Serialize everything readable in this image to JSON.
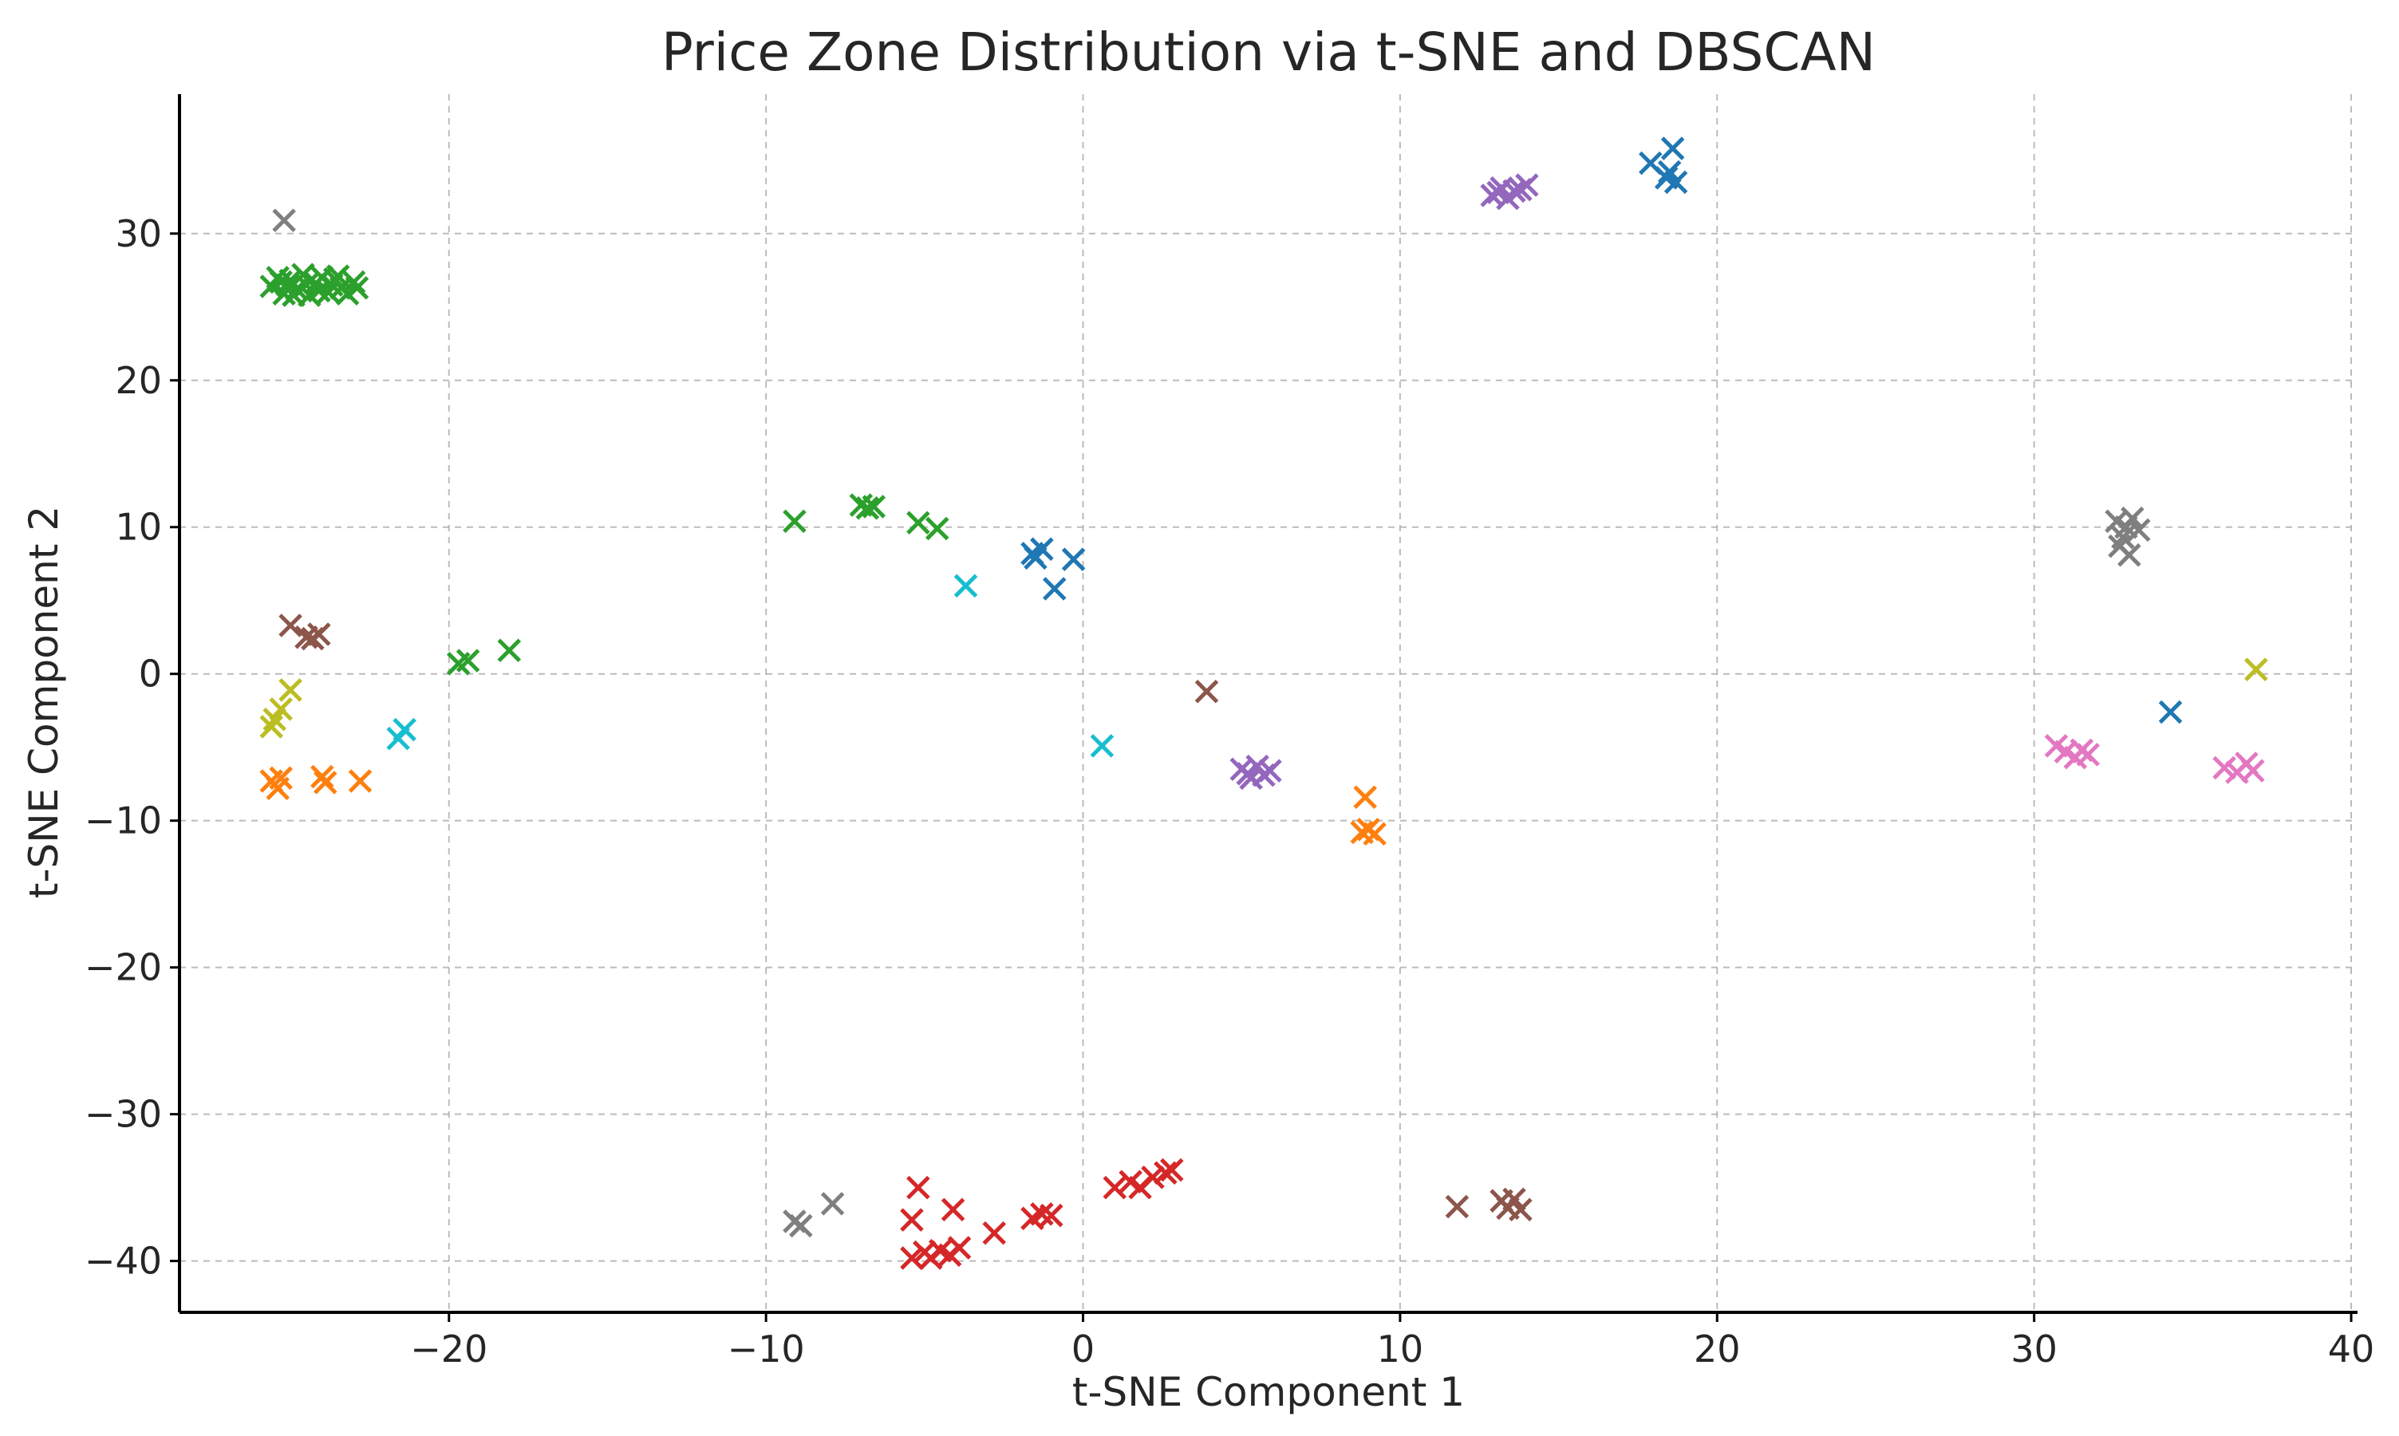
{
  "chart_data": {
    "type": "scatter",
    "title": "Price Zone Distribution via t-SNE and DBSCAN",
    "xlabel": "t-SNE Component 1",
    "ylabel": "t-SNE Component 2",
    "xlim": [
      -28.5,
      40.2
    ],
    "ylim": [
      -43.5,
      39.5
    ],
    "xticks": [
      -20,
      -10,
      0,
      10,
      20,
      30,
      40
    ],
    "yticks": [
      -40,
      -30,
      -20,
      -10,
      0,
      10,
      20,
      30
    ],
    "xtick_labels": [
      "−20",
      "−10",
      "0",
      "10",
      "20",
      "30",
      "40"
    ],
    "ytick_labels": [
      "−40",
      "−30",
      "−20",
      "−10",
      "0",
      "10",
      "20",
      "30"
    ],
    "grid": true,
    "marker": "x",
    "series": [
      {
        "color": "#2ca02c",
        "points": [
          [
            -25.6,
            26.4
          ],
          [
            -25.4,
            27.0
          ],
          [
            -25.2,
            25.9
          ],
          [
            -25.0,
            26.8
          ],
          [
            -24.8,
            26.2
          ],
          [
            -24.6,
            27.2
          ],
          [
            -24.4,
            25.8
          ],
          [
            -24.2,
            26.6
          ],
          [
            -24.0,
            27.0
          ],
          [
            -23.8,
            26.0
          ],
          [
            -23.6,
            26.9
          ],
          [
            -23.4,
            26.3
          ],
          [
            -23.2,
            25.9
          ],
          [
            -23.0,
            26.7
          ],
          [
            -24.5,
            26.5
          ],
          [
            -24.1,
            26.1
          ],
          [
            -23.7,
            26.5
          ],
          [
            -25.1,
            26.5
          ],
          [
            -24.9,
            25.8
          ],
          [
            -23.5,
            27.1
          ],
          [
            -22.9,
            26.3
          ],
          [
            -25.3,
            26.7
          ],
          [
            -9.1,
            10.4
          ],
          [
            -7.0,
            11.5
          ],
          [
            -6.8,
            11.3
          ],
          [
            -6.6,
            11.4
          ],
          [
            -5.2,
            10.3
          ],
          [
            -4.6,
            9.9
          ],
          [
            -19.7,
            0.7
          ],
          [
            -19.4,
            0.9
          ],
          [
            -18.1,
            1.6
          ]
        ]
      },
      {
        "color": "#1f77b4",
        "points": [
          [
            17.9,
            34.8
          ],
          [
            18.6,
            35.8
          ],
          [
            18.4,
            33.8
          ],
          [
            18.7,
            33.5
          ],
          [
            18.5,
            34.2
          ],
          [
            -1.6,
            8.2
          ],
          [
            -1.3,
            8.5
          ],
          [
            -1.5,
            7.9
          ],
          [
            -0.3,
            7.8
          ],
          [
            -0.9,
            5.8
          ],
          [
            34.3,
            -2.6
          ]
        ]
      },
      {
        "color": "#9467bd",
        "points": [
          [
            12.9,
            32.6
          ],
          [
            13.2,
            33.1
          ],
          [
            13.4,
            32.4
          ],
          [
            13.6,
            32.9
          ],
          [
            13.8,
            33.0
          ],
          [
            14.0,
            33.3
          ],
          [
            13.1,
            32.8
          ],
          [
            5.0,
            -6.5
          ],
          [
            5.3,
            -7.1
          ],
          [
            5.5,
            -6.3
          ],
          [
            5.7,
            -6.9
          ],
          [
            5.9,
            -6.6
          ],
          [
            5.2,
            -6.8
          ]
        ]
      },
      {
        "color": "#7f7f7f",
        "points": [
          [
            -25.2,
            30.9
          ],
          [
            32.6,
            10.4
          ],
          [
            32.9,
            10.0
          ],
          [
            33.1,
            10.6
          ],
          [
            33.3,
            9.8
          ],
          [
            32.8,
            9.3
          ],
          [
            32.7,
            8.7
          ],
          [
            33.0,
            8.1
          ],
          [
            -9.1,
            -37.3
          ],
          [
            -8.9,
            -37.6
          ],
          [
            -7.9,
            -36.1
          ]
        ]
      },
      {
        "color": "#8c564b",
        "points": [
          [
            -25.0,
            3.3
          ],
          [
            -24.5,
            2.5
          ],
          [
            -24.1,
            2.7
          ],
          [
            -24.3,
            2.4
          ],
          [
            3.9,
            -1.2
          ],
          [
            11.8,
            -36.3
          ],
          [
            13.2,
            -35.9
          ],
          [
            13.4,
            -36.4
          ],
          [
            13.6,
            -35.8
          ],
          [
            13.8,
            -36.5
          ]
        ]
      },
      {
        "color": "#bcbd22",
        "points": [
          [
            -25.6,
            -3.6
          ],
          [
            -25.5,
            -3.1
          ],
          [
            -25.3,
            -2.4
          ],
          [
            -25.0,
            -1.1
          ],
          [
            37.0,
            0.3
          ]
        ]
      },
      {
        "color": "#17becf",
        "points": [
          [
            -21.6,
            -4.4
          ],
          [
            -21.4,
            -3.8
          ],
          [
            -3.7,
            6.0
          ],
          [
            0.6,
            -4.9
          ]
        ]
      },
      {
        "color": "#ff7f0e",
        "points": [
          [
            -25.6,
            -7.3
          ],
          [
            -25.4,
            -7.8
          ],
          [
            -25.3,
            -7.1
          ],
          [
            -24.0,
            -7.0
          ],
          [
            -23.9,
            -7.4
          ],
          [
            -22.8,
            -7.3
          ],
          [
            8.8,
            -10.8
          ],
          [
            8.9,
            -8.4
          ],
          [
            9.0,
            -10.6
          ],
          [
            9.2,
            -10.9
          ]
        ]
      },
      {
        "color": "#d62728",
        "points": [
          [
            -5.4,
            -39.8
          ],
          [
            -5.2,
            -35.0
          ],
          [
            -5.4,
            -37.2
          ],
          [
            -5.0,
            -39.4
          ],
          [
            -4.8,
            -39.8
          ],
          [
            -4.5,
            -39.3
          ],
          [
            -4.2,
            -39.6
          ],
          [
            -3.9,
            -39.1
          ],
          [
            -4.1,
            -36.5
          ],
          [
            -2.8,
            -38.1
          ],
          [
            -1.6,
            -37.1
          ],
          [
            -1.3,
            -36.8
          ],
          [
            -1.0,
            -36.9
          ],
          [
            1.0,
            -35.0
          ],
          [
            1.5,
            -34.6
          ],
          [
            1.8,
            -35.0
          ],
          [
            2.2,
            -34.3
          ],
          [
            2.6,
            -34.0
          ],
          [
            2.8,
            -33.8
          ]
        ]
      },
      {
        "color": "#e377c2",
        "points": [
          [
            30.7,
            -4.9
          ],
          [
            31.0,
            -5.3
          ],
          [
            31.3,
            -5.7
          ],
          [
            31.5,
            -5.2
          ],
          [
            31.7,
            -5.5
          ],
          [
            36.0,
            -6.4
          ],
          [
            36.4,
            -6.7
          ],
          [
            36.7,
            -6.1
          ],
          [
            36.9,
            -6.6
          ]
        ]
      }
    ]
  }
}
